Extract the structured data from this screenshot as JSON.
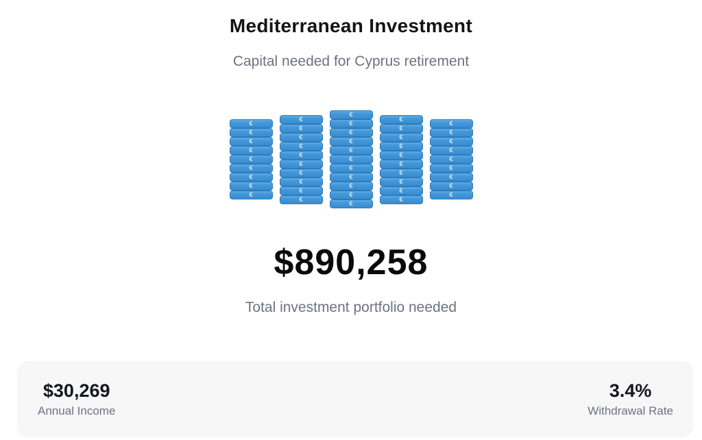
{
  "header": {
    "title": "Mediterranean Investment",
    "subtitle": "Capital needed for Cyprus retirement"
  },
  "visualization": {
    "icon": "euro-money-stacks",
    "symbol": "€",
    "stacks": [
      9,
      10,
      11,
      10,
      9
    ],
    "note_color": "#3f92d4",
    "note_highlight": "#60abe6",
    "note_border": "#2d7ab9",
    "symbol_color": "#d2e9fa"
  },
  "total": {
    "amount": "$890,258",
    "caption": "Total investment portfolio needed"
  },
  "summary": {
    "left": {
      "value": "$30,269",
      "label": "Annual Income"
    },
    "right": {
      "value": "3.4%",
      "label": "Withdrawal Rate"
    }
  },
  "colors": {
    "text_primary": "#121417",
    "text_muted": "#6b7280",
    "summary_bar_bg": "#f7f7f8",
    "background": "#ffffff"
  }
}
